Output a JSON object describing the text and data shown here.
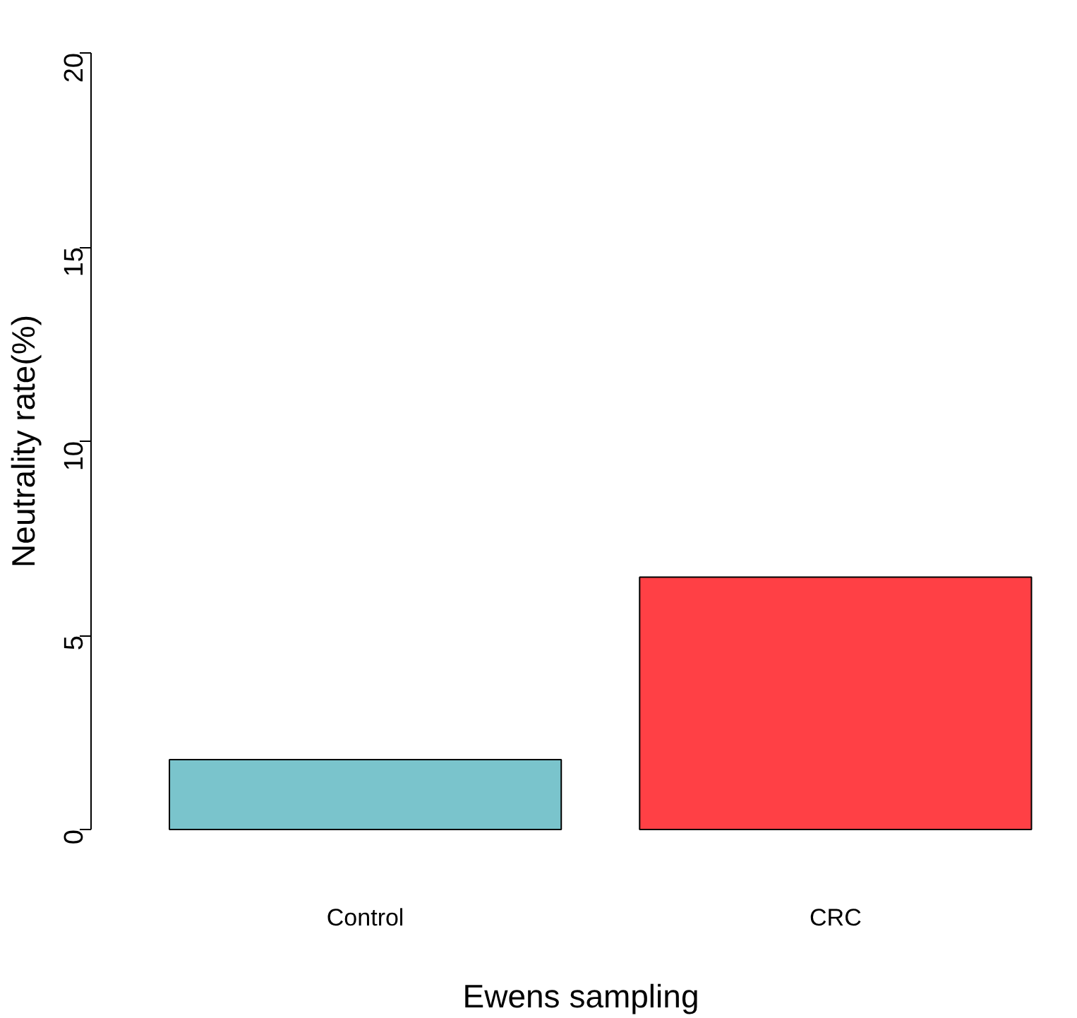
{
  "chart_data": {
    "type": "bar",
    "xlabel": "Ewens sampling",
    "ylabel": "Neutrality rate(%)",
    "categories": [
      "Control",
      "CRC"
    ],
    "values": [
      1.8,
      6.5
    ],
    "colors": [
      "#7ac4cc",
      "#ff4045"
    ],
    "ylim": [
      0,
      20
    ],
    "yticks": [
      0,
      5,
      10,
      15,
      20
    ],
    "grid": false
  }
}
